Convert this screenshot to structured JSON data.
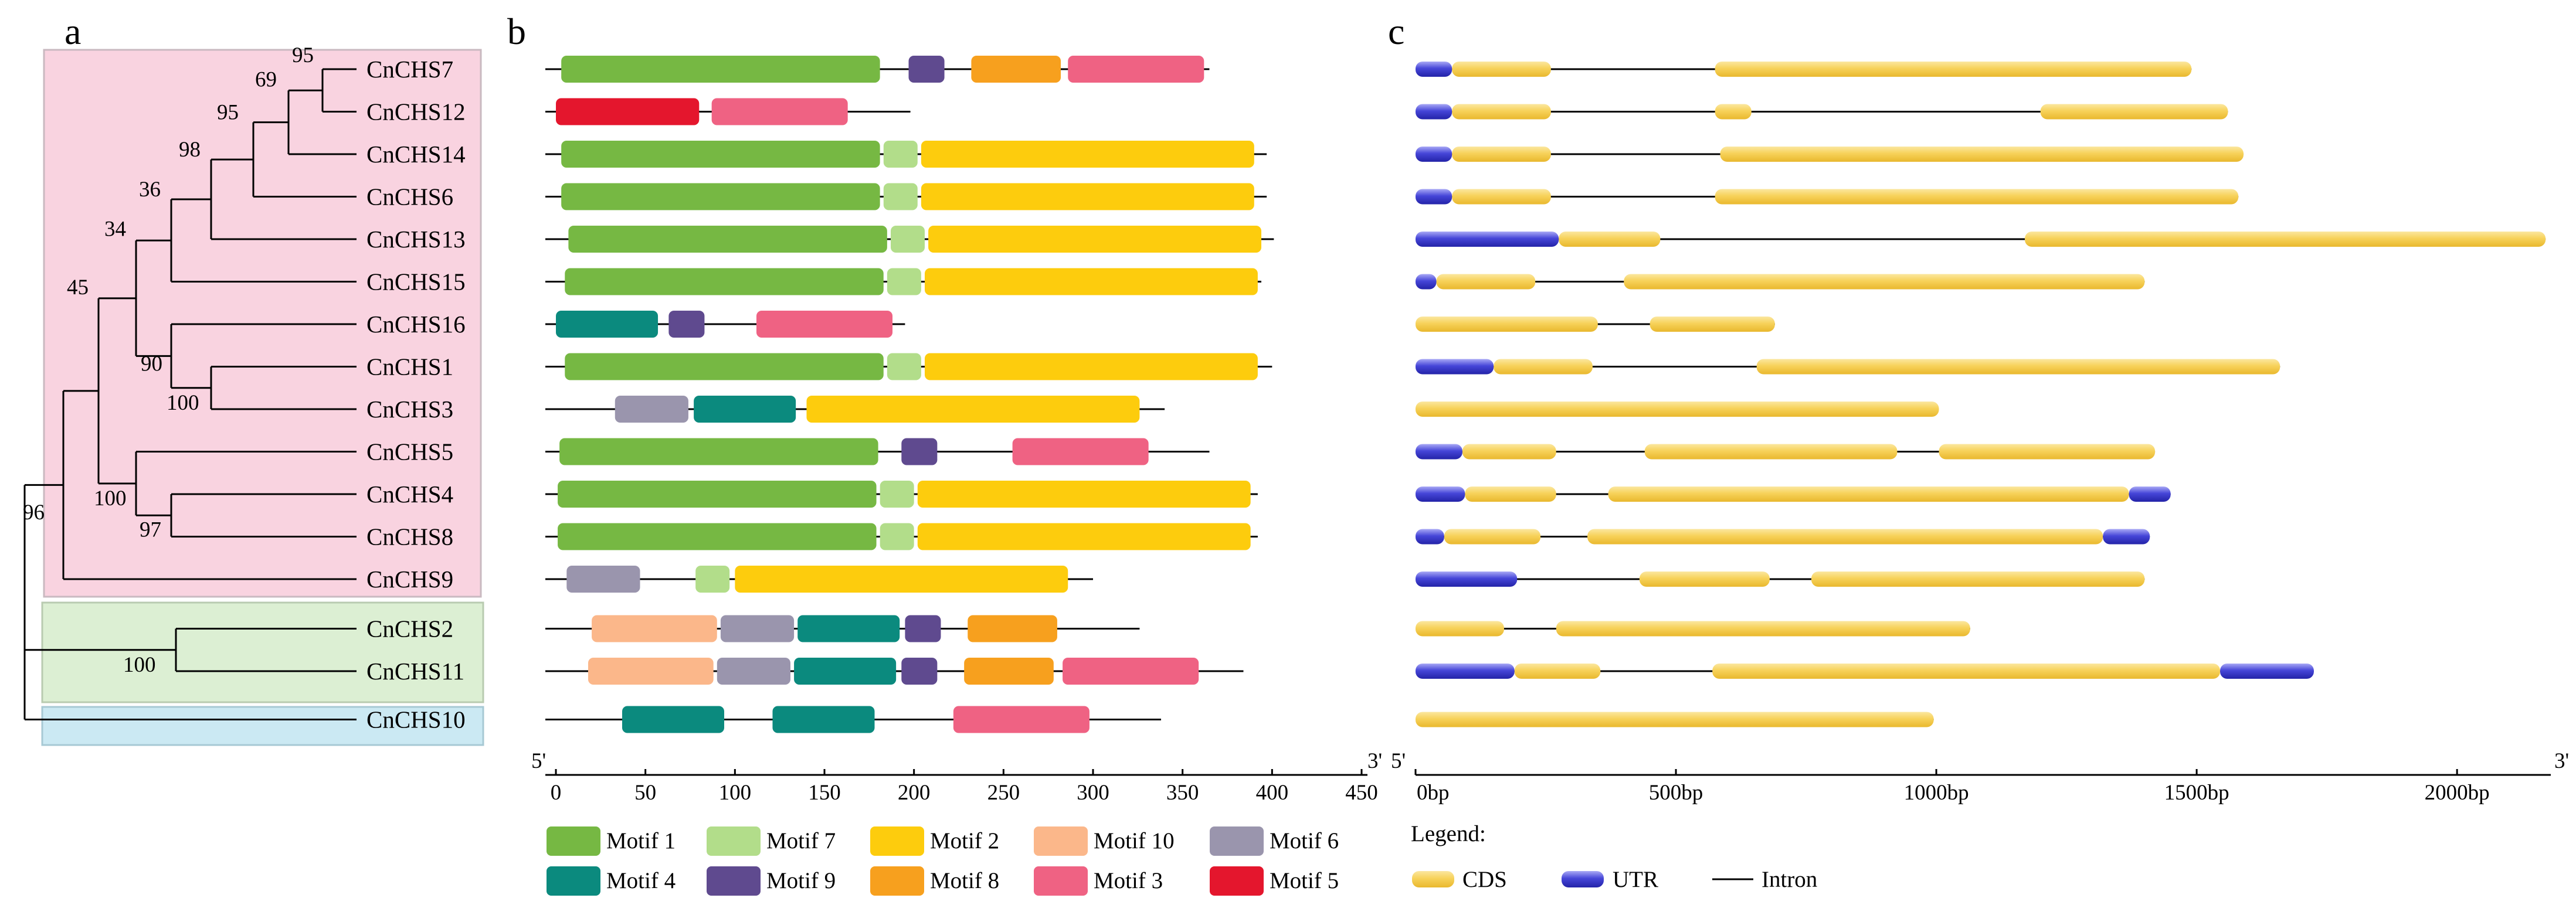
{
  "panels": {
    "a": "a",
    "b": "b",
    "c": "c"
  },
  "colors": {
    "group1": "#f9d3e0",
    "group2": "#dcefd3",
    "group3": "#cbe9f3",
    "tree_line": "#000000",
    "utr": "#3f3fd0",
    "cds": "#f7d25a",
    "intron": "#000000"
  },
  "tree": {
    "genes": [
      "CnCHS7",
      "CnCHS12",
      "CnCHS14",
      "CnCHS6",
      "CnCHS13",
      "CnCHS15",
      "CnCHS16",
      "CnCHS1",
      "CnCHS3",
      "CnCHS5",
      "CnCHS4",
      "CnCHS8",
      "CnCHS9",
      "CnCHS2",
      "CnCHS11",
      "CnCHS10"
    ],
    "bootstrap": [
      "95",
      "69",
      "95",
      "98",
      "36",
      "34",
      "90",
      "100",
      "45",
      "100",
      "97",
      "96",
      "100"
    ]
  },
  "motifs": {
    "scale_end": 450,
    "ticks": [
      "0",
      "50",
      "100",
      "150",
      "200",
      "250",
      "300",
      "350",
      "400",
      "450"
    ],
    "prime5": "5'",
    "prime3": "3'",
    "definitions": {
      "Motif 1": "#76b843",
      "Motif 7": "#b2dd8a",
      "Motif 2": "#fdcc0d",
      "Motif 10": "#fbb78a",
      "Motif 6": "#9a95ad",
      "Motif 4": "#0b8a7e",
      "Motif 9": "#5f4a8f",
      "Motif 8": "#f7a01e",
      "Motif 3": "#ef6283",
      "Motif 5": "#e4162d"
    },
    "legend": [
      "Motif 1",
      "Motif 7",
      "Motif 2",
      "Motif 10",
      "Motif 6",
      "Motif 4",
      "Motif 9",
      "Motif 8",
      "Motif 3",
      "Motif 5"
    ],
    "rows": [
      {
        "gene": "CnCHS7",
        "length": 365,
        "motifs": [
          [
            "Motif 1",
            3,
            181
          ],
          [
            "Motif 9",
            197,
            217
          ],
          [
            "Motif 8",
            232,
            282
          ],
          [
            "Motif 3",
            286,
            362
          ]
        ]
      },
      {
        "gene": "CnCHS12",
        "length": 198,
        "motifs": [
          [
            "Motif 5",
            0,
            80
          ],
          [
            "Motif 3",
            87,
            163
          ]
        ]
      },
      {
        "gene": "CnCHS14",
        "length": 397,
        "motifs": [
          [
            "Motif 1",
            3,
            181
          ],
          [
            "Motif 7",
            183,
            202
          ],
          [
            "Motif 2",
            204,
            390
          ]
        ]
      },
      {
        "gene": "CnCHS6",
        "length": 397,
        "motifs": [
          [
            "Motif 1",
            3,
            181
          ],
          [
            "Motif 7",
            183,
            202
          ],
          [
            "Motif 2",
            204,
            390
          ]
        ]
      },
      {
        "gene": "CnCHS13",
        "length": 401,
        "motifs": [
          [
            "Motif 1",
            7,
            185
          ],
          [
            "Motif 7",
            187,
            206
          ],
          [
            "Motif 2",
            208,
            394
          ]
        ]
      },
      {
        "gene": "CnCHS15",
        "length": 394,
        "motifs": [
          [
            "Motif 1",
            5,
            183
          ],
          [
            "Motif 7",
            185,
            204
          ],
          [
            "Motif 2",
            206,
            392
          ]
        ]
      },
      {
        "gene": "CnCHS16",
        "length": 195,
        "motifs": [
          [
            "Motif 4",
            0,
            57
          ],
          [
            "Motif 9",
            63,
            83
          ],
          [
            "Motif 3",
            112,
            188
          ]
        ]
      },
      {
        "gene": "CnCHS1",
        "length": 400,
        "motifs": [
          [
            "Motif 1",
            5,
            183
          ],
          [
            "Motif 7",
            185,
            204
          ],
          [
            "Motif 2",
            206,
            392
          ]
        ]
      },
      {
        "gene": "CnCHS3",
        "length": 340,
        "motifs": [
          [
            "Motif 6",
            33,
            74
          ],
          [
            "Motif 4",
            77,
            134
          ],
          [
            "Motif 2",
            140,
            326
          ]
        ]
      },
      {
        "gene": "CnCHS5",
        "length": 365,
        "motifs": [
          [
            "Motif 1",
            2,
            180
          ],
          [
            "Motif 9",
            193,
            213
          ],
          [
            "Motif 3",
            255,
            331
          ]
        ]
      },
      {
        "gene": "CnCHS4",
        "length": 392,
        "motifs": [
          [
            "Motif 1",
            1,
            179
          ],
          [
            "Motif 7",
            181,
            200
          ],
          [
            "Motif 2",
            202,
            388
          ]
        ]
      },
      {
        "gene": "CnCHS8",
        "length": 392,
        "motifs": [
          [
            "Motif 1",
            1,
            179
          ],
          [
            "Motif 7",
            181,
            200
          ],
          [
            "Motif 2",
            202,
            388
          ]
        ]
      },
      {
        "gene": "CnCHS9",
        "length": 300,
        "motifs": [
          [
            "Motif 6",
            6,
            47
          ],
          [
            "Motif 7",
            78,
            97
          ],
          [
            "Motif 2",
            100,
            286
          ]
        ]
      },
      {
        "gene": "CnCHS2",
        "length": 326,
        "motifs": [
          [
            "Motif 10",
            20,
            90
          ],
          [
            "Motif 6",
            92,
            133
          ],
          [
            "Motif 4",
            135,
            192
          ],
          [
            "Motif 9",
            195,
            215
          ],
          [
            "Motif 8",
            230,
            280
          ]
        ]
      },
      {
        "gene": "CnCHS11",
        "length": 384,
        "motifs": [
          [
            "Motif 10",
            18,
            88
          ],
          [
            "Motif 6",
            90,
            131
          ],
          [
            "Motif 4",
            133,
            190
          ],
          [
            "Motif 9",
            193,
            213
          ],
          [
            "Motif 8",
            228,
            278
          ],
          [
            "Motif 3",
            283,
            359
          ]
        ]
      },
      {
        "gene": "CnCHS10",
        "length": 338,
        "motifs": [
          [
            "Motif 4",
            37,
            94
          ],
          [
            "Motif 4",
            121,
            178
          ],
          [
            "Motif 3",
            222,
            298
          ]
        ]
      }
    ]
  },
  "gene_structure": {
    "scale_end": 2180,
    "ticks": [
      "0bp",
      "500bp",
      "1000bp",
      "1500bp",
      "2000bp"
    ],
    "prime5": "5'",
    "prime3": "3'",
    "legend_title": "Legend:",
    "legend": [
      "CDS",
      "UTR",
      "Intron"
    ],
    "rows": [
      {
        "gene": "CnCHS7",
        "end": 1490,
        "blocks": [
          [
            "UTR",
            0,
            70
          ],
          [
            "CDS",
            70,
            260
          ],
          [
            "CDS",
            575,
            1490
          ]
        ]
      },
      {
        "gene": "CnCHS12",
        "end": 1560,
        "blocks": [
          [
            "UTR",
            0,
            70
          ],
          [
            "CDS",
            70,
            260
          ],
          [
            "CDS",
            575,
            645
          ],
          [
            "CDS",
            1200,
            1560
          ]
        ]
      },
      {
        "gene": "CnCHS14",
        "end": 1590,
        "blocks": [
          [
            "UTR",
            0,
            70
          ],
          [
            "CDS",
            70,
            260
          ],
          [
            "CDS",
            585,
            1590
          ]
        ]
      },
      {
        "gene": "CnCHS6",
        "end": 1580,
        "blocks": [
          [
            "UTR",
            0,
            70
          ],
          [
            "CDS",
            70,
            260
          ],
          [
            "CDS",
            575,
            1580
          ]
        ]
      },
      {
        "gene": "CnCHS13",
        "end": 2170,
        "blocks": [
          [
            "UTR",
            0,
            275
          ],
          [
            "CDS",
            275,
            470
          ],
          [
            "CDS",
            1170,
            2170
          ]
        ]
      },
      {
        "gene": "CnCHS15",
        "end": 1400,
        "blocks": [
          [
            "UTR",
            0,
            40
          ],
          [
            "CDS",
            40,
            230
          ],
          [
            "CDS",
            400,
            1400
          ]
        ]
      },
      {
        "gene": "CnCHS16",
        "end": 690,
        "blocks": [
          [
            "CDS",
            0,
            350
          ],
          [
            "CDS",
            450,
            690
          ]
        ]
      },
      {
        "gene": "CnCHS1",
        "end": 1660,
        "blocks": [
          [
            "UTR",
            0,
            150
          ],
          [
            "CDS",
            150,
            340
          ],
          [
            "CDS",
            655,
            1660
          ]
        ]
      },
      {
        "gene": "CnCHS3",
        "end": 1005,
        "blocks": [
          [
            "CDS",
            0,
            1005
          ]
        ]
      },
      {
        "gene": "CnCHS5",
        "end": 1420,
        "blocks": [
          [
            "UTR",
            0,
            90
          ],
          [
            "CDS",
            90,
            270
          ],
          [
            "CDS",
            440,
            925
          ],
          [
            "CDS",
            1005,
            1420
          ]
        ]
      },
      {
        "gene": "CnCHS4",
        "end": 1450,
        "blocks": [
          [
            "UTR",
            0,
            95
          ],
          [
            "CDS",
            95,
            270
          ],
          [
            "CDS",
            370,
            1370
          ],
          [
            "UTR",
            1370,
            1450
          ]
        ]
      },
      {
        "gene": "CnCHS8",
        "end": 1410,
        "blocks": [
          [
            "UTR",
            0,
            55
          ],
          [
            "CDS",
            55,
            240
          ],
          [
            "CDS",
            330,
            1320
          ],
          [
            "UTR",
            1320,
            1410
          ]
        ]
      },
      {
        "gene": "CnCHS9",
        "end": 1400,
        "blocks": [
          [
            "UTR",
            0,
            195
          ],
          [
            "CDS",
            430,
            680
          ],
          [
            "CDS",
            760,
            1400
          ]
        ]
      },
      {
        "gene": "CnCHS2",
        "end": 1065,
        "blocks": [
          [
            "CDS",
            0,
            170
          ],
          [
            "CDS",
            270,
            1065
          ]
        ]
      },
      {
        "gene": "CnCHS11",
        "end": 1725,
        "blocks": [
          [
            "UTR",
            0,
            190
          ],
          [
            "CDS",
            190,
            355
          ],
          [
            "CDS",
            570,
            1545
          ],
          [
            "UTR",
            1545,
            1725
          ]
        ]
      },
      {
        "gene": "CnCHS10",
        "end": 995,
        "blocks": [
          [
            "CDS",
            0,
            995
          ]
        ]
      }
    ]
  }
}
